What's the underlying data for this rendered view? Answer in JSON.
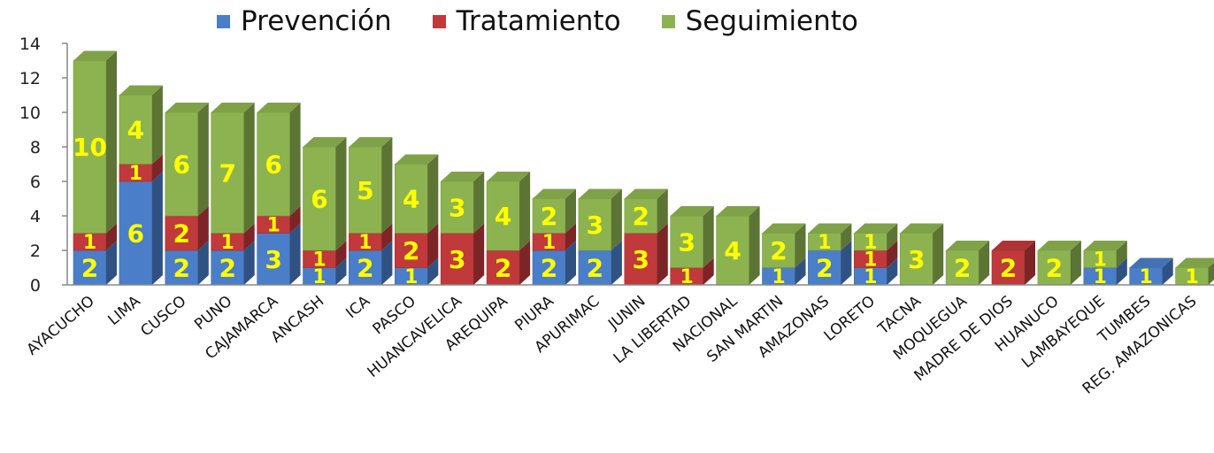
{
  "chart_data": {
    "type": "bar",
    "stacked": true,
    "categories": [
      "AYACUCHO",
      "LIMA",
      "CUSCO",
      "PUNO",
      "CAJAMARCA",
      "ANCASH",
      "ICA",
      "PASCO",
      "HUANCAVELICA",
      "AREQUIPA",
      "PIURA",
      "APURIMAC",
      "JUNIN",
      "LA LIBERTAD",
      "NACIONAL",
      "SAN MARTIN",
      "AMAZONAS",
      "LORETO",
      "TACNA",
      "MOQUEGUA",
      "MADRE DE DIOS",
      "HUANUCO",
      "LAMBAYEQUE",
      "TUMBES",
      "REG. AMAZONICAS"
    ],
    "series": [
      {
        "name": "Prevención",
        "color": "#4a7ec8",
        "values": [
          2,
          6,
          2,
          2,
          3,
          1,
          2,
          1,
          0,
          0,
          2,
          2,
          0,
          0,
          0,
          1,
          2,
          1,
          0,
          0,
          0,
          0,
          1,
          1,
          0
        ]
      },
      {
        "name": "Tratamiento",
        "color": "#c0393b",
        "values": [
          1,
          1,
          2,
          1,
          1,
          1,
          1,
          2,
          3,
          2,
          1,
          0,
          3,
          1,
          0,
          0,
          0,
          1,
          0,
          0,
          2,
          0,
          0,
          0,
          0
        ]
      },
      {
        "name": "Seguimiento",
        "color": "#8db350",
        "values": [
          10,
          4,
          6,
          7,
          6,
          6,
          5,
          4,
          3,
          4,
          2,
          3,
          2,
          3,
          4,
          2,
          1,
          1,
          3,
          2,
          0,
          2,
          1,
          0,
          1
        ]
      }
    ],
    "ylim": [
      0,
      14
    ],
    "yticks": [
      0,
      2,
      4,
      6,
      8,
      10,
      12,
      14
    ],
    "legend_position": "top",
    "grid": false,
    "data_labels": true
  }
}
